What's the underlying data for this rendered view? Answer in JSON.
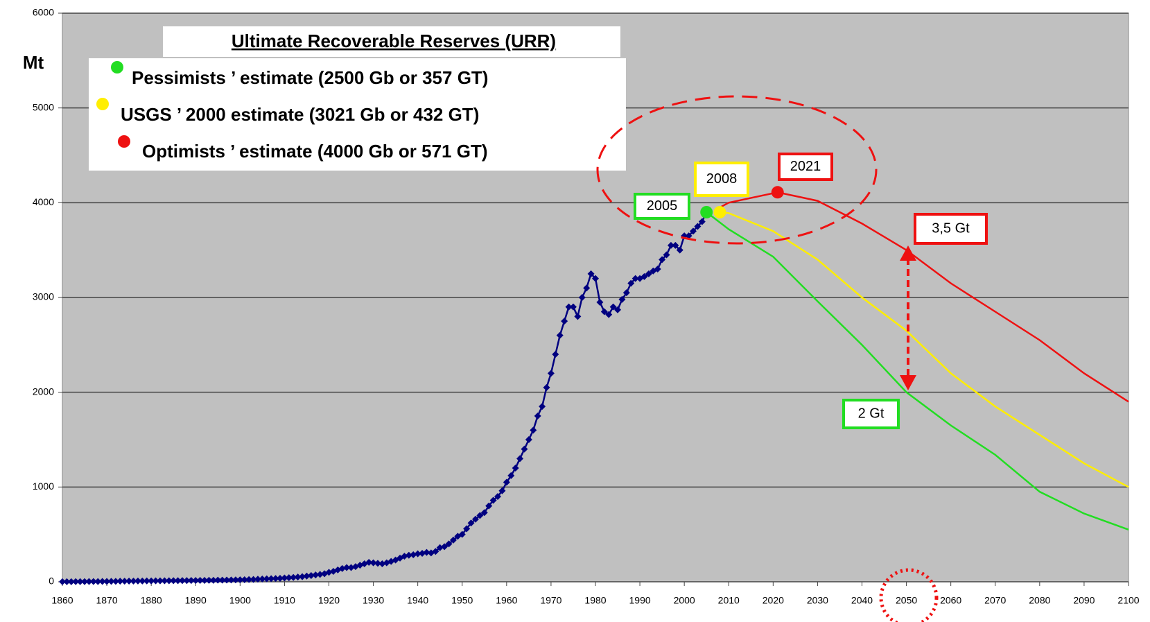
{
  "chart_data": {
    "type": "line",
    "y_label": "Mt",
    "legend_title": "Ultimate Recoverable Reserves (URR)",
    "xlim": [
      1860,
      2100
    ],
    "ylim": [
      0,
      6000
    ],
    "xticks": [
      1860,
      1870,
      1880,
      1890,
      1900,
      1910,
      1920,
      1930,
      1940,
      1950,
      1960,
      1970,
      1980,
      1990,
      2000,
      2010,
      2020,
      2030,
      2040,
      2050,
      2060,
      2070,
      2080,
      2090,
      2100
    ],
    "yticks": [
      0,
      1000,
      2000,
      3000,
      4000,
      5000,
      6000
    ],
    "grid": true,
    "series": [
      {
        "color": "#000080",
        "markers": true,
        "x": [
          1860,
          1861,
          1862,
          1863,
          1864,
          1865,
          1866,
          1867,
          1868,
          1869,
          1870,
          1871,
          1872,
          1873,
          1874,
          1875,
          1876,
          1877,
          1878,
          1879,
          1880,
          1881,
          1882,
          1883,
          1884,
          1885,
          1886,
          1887,
          1888,
          1889,
          1890,
          1891,
          1892,
          1893,
          1894,
          1895,
          1896,
          1897,
          1898,
          1899,
          1900,
          1901,
          1902,
          1903,
          1904,
          1905,
          1906,
          1907,
          1908,
          1909,
          1910,
          1911,
          1912,
          1913,
          1914,
          1915,
          1916,
          1917,
          1918,
          1919,
          1920,
          1921,
          1922,
          1923,
          1924,
          1925,
          1926,
          1927,
          1928,
          1929,
          1930,
          1931,
          1932,
          1933,
          1934,
          1935,
          1936,
          1937,
          1938,
          1939,
          1940,
          1941,
          1942,
          1943,
          1944,
          1945,
          1946,
          1947,
          1948,
          1949,
          1950,
          1951,
          1952,
          1953,
          1954,
          1955,
          1956,
          1957,
          1958,
          1959,
          1960,
          1961,
          1962,
          1963,
          1964,
          1965,
          1966,
          1967,
          1968,
          1969,
          1970,
          1971,
          1972,
          1973,
          1974,
          1975,
          1976,
          1977,
          1978,
          1979,
          1980,
          1981,
          1982,
          1983,
          1984,
          1985,
          1986,
          1987,
          1988,
          1989,
          1990,
          1991,
          1992,
          1993,
          1994,
          1995,
          1996,
          1997,
          1998,
          1999,
          2000,
          2001,
          2002,
          2003,
          2004,
          2005
        ],
        "values": [
          1,
          1,
          1,
          2,
          2,
          2,
          3,
          3,
          3,
          4,
          4,
          5,
          5,
          6,
          6,
          7,
          7,
          8,
          8,
          9,
          9,
          10,
          10,
          11,
          11,
          12,
          12,
          13,
          13,
          14,
          14,
          15,
          15,
          16,
          16,
          17,
          17,
          18,
          19,
          20,
          21,
          22,
          24,
          25,
          27,
          29,
          31,
          33,
          35,
          37,
          40,
          43,
          46,
          50,
          54,
          60,
          66,
          72,
          78,
          85,
          100,
          110,
          125,
          140,
          150,
          150,
          160,
          175,
          190,
          205,
          200,
          195,
          190,
          200,
          215,
          230,
          250,
          270,
          280,
          285,
          295,
          300,
          310,
          305,
          320,
          360,
          370,
          400,
          440,
          480,
          500,
          560,
          620,
          660,
          700,
          730,
          800,
          860,
          900,
          960,
          1050,
          1120,
          1200,
          1300,
          1400,
          1500,
          1600,
          1750,
          1850,
          2050,
          2200,
          2400,
          2600,
          2750,
          2900,
          2900,
          2800,
          3000,
          3100,
          3250,
          3200,
          2950,
          2850,
          2820,
          2900,
          2870,
          2980,
          3050,
          3150,
          3200,
          3200,
          3220,
          3250,
          3280,
          3300,
          3400,
          3450,
          3550,
          3550,
          3500,
          3650,
          3650,
          3700,
          3750,
          3800,
          3900
        ]
      },
      {
        "name": "Pessimists ’ estimate (2500 Gb or 357 GT)",
        "color": "#22dd22",
        "x": [
          2005,
          2010,
          2020,
          2030,
          2040,
          2050,
          2060,
          2070,
          2080,
          2090,
          2100
        ],
        "values": [
          3900,
          3720,
          3430,
          2960,
          2500,
          2000,
          1650,
          1340,
          950,
          720,
          550
        ]
      },
      {
        "name": "USGS ’ 2000 estimate (3021 Gb or 432 GT)",
        "color": "#ffee00",
        "x": [
          2008,
          2010,
          2020,
          2030,
          2040,
          2050,
          2060,
          2070,
          2080,
          2090,
          2100
        ],
        "values": [
          3900,
          3890,
          3700,
          3400,
          3000,
          2650,
          2200,
          1850,
          1550,
          1250,
          1000
        ]
      },
      {
        "name": "Optimists ’ estimate (4000 Gb or 571 GT)",
        "color": "#ee1111",
        "x": [
          2008,
          2010,
          2021,
          2030,
          2040,
          2050,
          2060,
          2070,
          2080,
          2090,
          2100
        ],
        "values": [
          3950,
          4000,
          4110,
          4020,
          3780,
          3500,
          3150,
          2850,
          2550,
          2200,
          1900
        ]
      }
    ],
    "annotations": [
      {
        "text": "2005",
        "color": "#22dd22"
      },
      {
        "text": "2008",
        "color": "#ffee00"
      },
      {
        "text": "2021",
        "color": "#ee1111"
      },
      {
        "text": "3,5 Gt",
        "color": "#ee1111"
      },
      {
        "text": "2 Gt",
        "color": "#22dd22"
      }
    ]
  }
}
